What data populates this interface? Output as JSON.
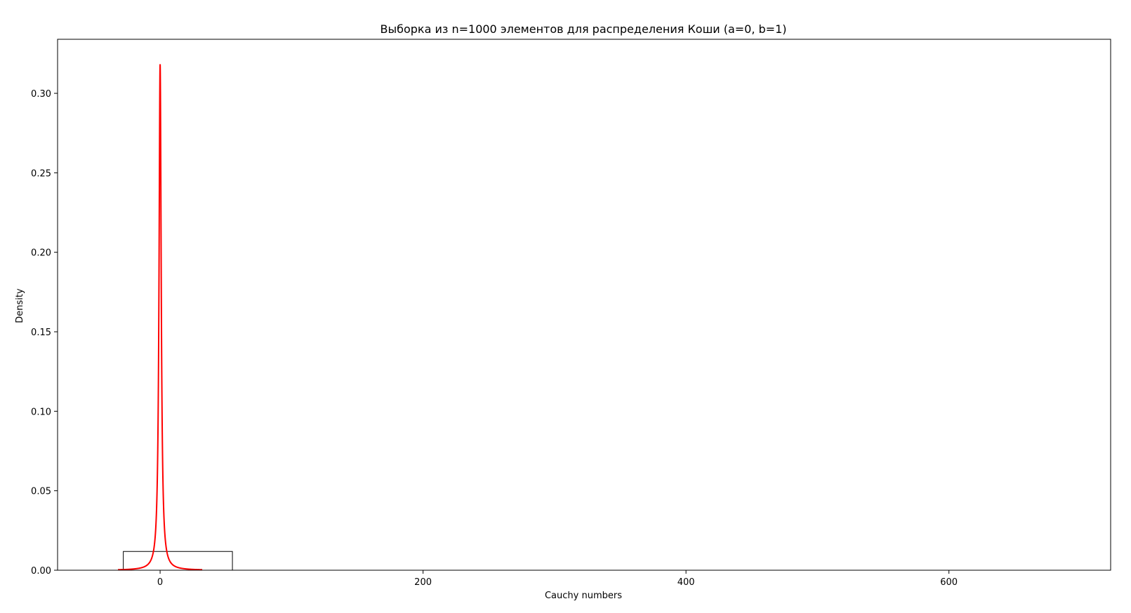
{
  "chart_data": {
    "type": "bar",
    "title": "Выборка из n=1000 элементов для распределения Коши (a=0, b=1)",
    "xlabel": "Cauchy numbers",
    "ylabel": "Density",
    "xlim": [
      -78,
      723
    ],
    "ylim": [
      0,
      0.334
    ],
    "x_ticks": [
      {
        "value": 0,
        "label": "0"
      },
      {
        "value": 200,
        "label": "200"
      },
      {
        "value": 400,
        "label": "400"
      },
      {
        "value": 600,
        "label": "600"
      }
    ],
    "y_ticks": [
      {
        "value": 0.0,
        "label": "0.00"
      },
      {
        "value": 0.05,
        "label": "0.05"
      },
      {
        "value": 0.1,
        "label": "0.10"
      },
      {
        "value": 0.15,
        "label": "0.15"
      },
      {
        "value": 0.2,
        "label": "0.20"
      },
      {
        "value": 0.25,
        "label": "0.25"
      },
      {
        "value": 0.3,
        "label": "0.30"
      }
    ],
    "grid": false,
    "legend": "none",
    "histogram": {
      "bins": [
        {
          "x0": -111,
          "x1": -28,
          "density": 0.0
        },
        {
          "x0": -28,
          "x1": 55,
          "density": 0.0118
        },
        {
          "x0": 55,
          "x1": 138,
          "density": 0.0
        },
        {
          "x0": 138,
          "x1": 221,
          "density": 0.0
        },
        {
          "x0": 221,
          "x1": 304,
          "density": 0.0
        },
        {
          "x0": 304,
          "x1": 387,
          "density": 0.0
        },
        {
          "x0": 387,
          "x1": 470,
          "density": 0.0
        },
        {
          "x0": 470,
          "x1": 553,
          "density": 0.0
        },
        {
          "x0": 553,
          "x1": 636,
          "density": 0.0
        },
        {
          "x0": 636,
          "x1": 719,
          "density": 0.0
        }
      ],
      "edge_color": "#000000",
      "fill": "none"
    },
    "density_curve": {
      "distribution": "cauchy",
      "location_a": 0,
      "scale_b": 1,
      "x_range": [
        -32,
        32
      ],
      "color": "#ff0000"
    }
  }
}
